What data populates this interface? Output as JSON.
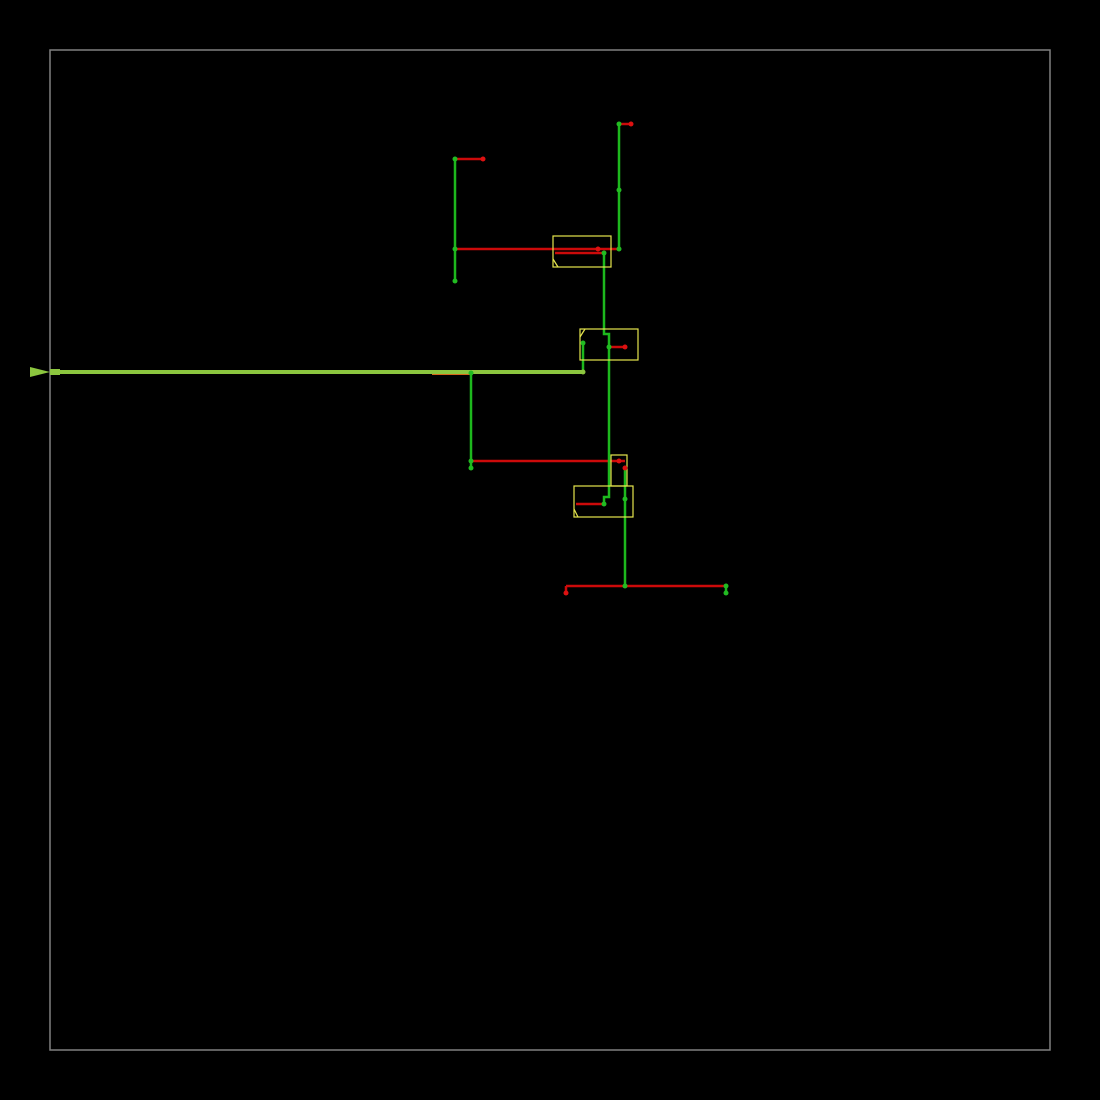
{
  "colors": {
    "background": "#000000",
    "frame": "#808080",
    "green_wire": "#1db81d",
    "red_wire": "#cc0a0a",
    "main_trunk": "#8cc63f",
    "orange_stub": "#d9661a",
    "component_box": "#e6e64d",
    "node": "#22bb22",
    "red_node": "#dd1111"
  },
  "layers": [
    "frame",
    "main-trunk",
    "green-wires",
    "red-wires",
    "component-boxes",
    "nodes"
  ],
  "legend": []
}
